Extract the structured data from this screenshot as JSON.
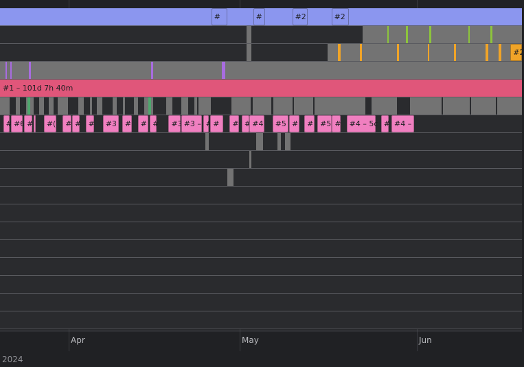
{
  "axis": {
    "year": "2024",
    "months": [
      {
        "name": "Apr",
        "frac": 0.1316
      },
      {
        "name": "May",
        "frac": 0.4592
      },
      {
        "name": "Jun",
        "frac": 0.7987
      }
    ]
  },
  "colors": {
    "blue": "#8b96ef",
    "pink": "#f07fc0",
    "red": "#e0567a",
    "orange": "#f0a428",
    "gray": "#737373",
    "dark": "#2a2b2e",
    "green": "#4fa66d",
    "lime": "#8dc43c",
    "purple": "#a86ce0",
    "line": "#5a5b60"
  },
  "lanes": [
    {
      "id": "lane-1",
      "base": {
        "color": "blue"
      },
      "segments": [
        {
          "start": 0.405,
          "end": 0.436,
          "color": "blue",
          "outline": true,
          "label": "#"
        },
        {
          "start": 0.485,
          "end": 0.508,
          "color": "blue",
          "outline": true,
          "label": "#"
        },
        {
          "start": 0.56,
          "end": 0.59,
          "color": "blue",
          "outline": true,
          "label": "#2"
        },
        {
          "start": 0.635,
          "end": 0.668,
          "color": "blue",
          "outline": true,
          "label": "#2"
        }
      ]
    },
    {
      "id": "lane-2",
      "base": {
        "color": "dark"
      },
      "segments": [
        {
          "start": 0.472,
          "end": 0.481,
          "color": "gray"
        },
        {
          "start": 0.695,
          "end": 1.0,
          "color": "gray"
        },
        {
          "start": 0.742,
          "end": 0.745,
          "color": "lime"
        },
        {
          "start": 0.778,
          "end": 0.781,
          "color": "lime"
        },
        {
          "start": 0.822,
          "end": 0.826,
          "color": "lime"
        },
        {
          "start": 0.897,
          "end": 0.9,
          "color": "lime"
        },
        {
          "start": 0.94,
          "end": 0.943,
          "color": "lime"
        }
      ]
    },
    {
      "id": "lane-3",
      "base": {
        "color": "dark"
      },
      "segments": [
        {
          "start": 0.472,
          "end": 0.481,
          "color": "gray"
        },
        {
          "start": 0.628,
          "end": 1.0,
          "color": "gray"
        },
        {
          "start": 0.648,
          "end": 0.652,
          "color": "orange"
        },
        {
          "start": 0.69,
          "end": 0.694,
          "color": "orange"
        },
        {
          "start": 0.76,
          "end": 0.764,
          "color": "orange"
        },
        {
          "start": 0.82,
          "end": 0.823,
          "color": "orange"
        },
        {
          "start": 0.87,
          "end": 0.874,
          "color": "orange"
        },
        {
          "start": 0.93,
          "end": 0.936,
          "color": "orange"
        },
        {
          "start": 0.955,
          "end": 0.96,
          "color": "orange"
        },
        {
          "start": 0.978,
          "end": 1.0,
          "color": "orange",
          "outline": true,
          "label": "#2"
        }
      ]
    },
    {
      "id": "lane-4",
      "base": {
        "color": "gray"
      },
      "segments": [
        {
          "start": 0.01,
          "end": 0.013,
          "color": "purple"
        },
        {
          "start": 0.02,
          "end": 0.023,
          "color": "purple"
        },
        {
          "start": 0.055,
          "end": 0.059,
          "color": "purple"
        },
        {
          "start": 0.29,
          "end": 0.294,
          "color": "purple"
        },
        {
          "start": 0.425,
          "end": 0.431,
          "color": "purple"
        }
      ]
    },
    {
      "id": "lane-5",
      "base": {
        "color": "red"
      },
      "segments": [
        {
          "start": 0.0,
          "end": 1.0,
          "color": "red",
          "label": "#1 – 101d 7h 40m"
        }
      ]
    },
    {
      "id": "lane-6",
      "base": {
        "color": "gray"
      },
      "segments": [
        {
          "start": 0.018,
          "end": 0.03,
          "color": "dark"
        },
        {
          "start": 0.038,
          "end": 0.05,
          "color": "dark"
        },
        {
          "start": 0.052,
          "end": 0.058,
          "color": "green"
        },
        {
          "start": 0.064,
          "end": 0.075,
          "color": "dark"
        },
        {
          "start": 0.084,
          "end": 0.094,
          "color": "dark"
        },
        {
          "start": 0.102,
          "end": 0.11,
          "color": "dark"
        },
        {
          "start": 0.13,
          "end": 0.15,
          "color": "dark"
        },
        {
          "start": 0.16,
          "end": 0.172,
          "color": "dark"
        },
        {
          "start": 0.176,
          "end": 0.186,
          "color": "dark"
        },
        {
          "start": 0.196,
          "end": 0.216,
          "color": "dark"
        },
        {
          "start": 0.224,
          "end": 0.236,
          "color": "dark"
        },
        {
          "start": 0.24,
          "end": 0.256,
          "color": "dark"
        },
        {
          "start": 0.264,
          "end": 0.276,
          "color": "dark"
        },
        {
          "start": 0.284,
          "end": 0.29,
          "color": "green"
        },
        {
          "start": 0.294,
          "end": 0.318,
          "color": "dark"
        },
        {
          "start": 0.33,
          "end": 0.348,
          "color": "dark"
        },
        {
          "start": 0.36,
          "end": 0.372,
          "color": "dark"
        },
        {
          "start": 0.378,
          "end": 0.38,
          "color": "dark"
        },
        {
          "start": 0.404,
          "end": 0.444,
          "color": "dark"
        },
        {
          "start": 0.48,
          "end": 0.484,
          "color": "dark"
        },
        {
          "start": 0.52,
          "end": 0.524,
          "color": "dark"
        },
        {
          "start": 0.56,
          "end": 0.563,
          "color": "dark"
        },
        {
          "start": 0.6,
          "end": 0.603,
          "color": "dark"
        },
        {
          "start": 0.7,
          "end": 0.712,
          "color": "dark"
        },
        {
          "start": 0.76,
          "end": 0.786,
          "color": "dark"
        },
        {
          "start": 0.846,
          "end": 0.849,
          "color": "dark"
        },
        {
          "start": 0.9,
          "end": 0.903,
          "color": "dark"
        },
        {
          "start": 0.95,
          "end": 0.953,
          "color": "dark"
        }
      ]
    },
    {
      "id": "lane-7",
      "base": {
        "color": "dark"
      },
      "segments": [
        {
          "start": 0.006,
          "end": 0.019,
          "color": "pink",
          "outline": true,
          "label": "#"
        },
        {
          "start": 0.021,
          "end": 0.044,
          "color": "pink",
          "outline": true,
          "label": "#6"
        },
        {
          "start": 0.046,
          "end": 0.062,
          "color": "pink",
          "outline": true,
          "label": "#"
        },
        {
          "start": 0.064,
          "end": 0.069,
          "color": "pink",
          "outline": true
        },
        {
          "start": 0.084,
          "end": 0.108,
          "color": "pink",
          "outline": true,
          "label": "#("
        },
        {
          "start": 0.12,
          "end": 0.137,
          "color": "pink",
          "outline": true,
          "label": "#"
        },
        {
          "start": 0.138,
          "end": 0.153,
          "color": "pink",
          "outline": true,
          "label": "#"
        },
        {
          "start": 0.164,
          "end": 0.18,
          "color": "pink",
          "outline": true,
          "label": "#"
        },
        {
          "start": 0.197,
          "end": 0.227,
          "color": "pink",
          "outline": true,
          "label": "#3"
        },
        {
          "start": 0.234,
          "end": 0.252,
          "color": "pink",
          "outline": true,
          "label": "#"
        },
        {
          "start": 0.264,
          "end": 0.284,
          "color": "pink",
          "outline": true,
          "label": "#"
        },
        {
          "start": 0.287,
          "end": 0.3,
          "color": "pink",
          "outline": true,
          "label": "#"
        },
        {
          "start": 0.323,
          "end": 0.346,
          "color": "pink",
          "outline": true,
          "label": "#3"
        },
        {
          "start": 0.347,
          "end": 0.387,
          "color": "pink",
          "outline": true,
          "label": "#3 –"
        },
        {
          "start": 0.389,
          "end": 0.4,
          "color": "pink",
          "outline": true,
          "label": "#"
        },
        {
          "start": 0.403,
          "end": 0.427,
          "color": "pink",
          "outline": true,
          "label": "#"
        },
        {
          "start": 0.44,
          "end": 0.458,
          "color": "pink",
          "outline": true,
          "label": "#"
        },
        {
          "start": 0.463,
          "end": 0.477,
          "color": "pink",
          "outline": true,
          "label": "#"
        },
        {
          "start": 0.478,
          "end": 0.506,
          "color": "pink",
          "outline": true,
          "label": "#4"
        },
        {
          "start": 0.522,
          "end": 0.552,
          "color": "pink",
          "outline": true,
          "label": "#5"
        },
        {
          "start": 0.554,
          "end": 0.574,
          "color": "pink",
          "outline": true,
          "label": "#"
        },
        {
          "start": 0.583,
          "end": 0.603,
          "color": "pink",
          "outline": true,
          "label": "#"
        },
        {
          "start": 0.608,
          "end": 0.635,
          "color": "pink",
          "outline": true,
          "label": "#5"
        },
        {
          "start": 0.636,
          "end": 0.652,
          "color": "pink",
          "outline": true,
          "label": "#"
        },
        {
          "start": 0.664,
          "end": 0.72,
          "color": "pink",
          "outline": true,
          "label": "#4 – 5c"
        },
        {
          "start": 0.73,
          "end": 0.745,
          "color": "pink",
          "outline": true,
          "label": "#"
        },
        {
          "start": 0.75,
          "end": 0.793,
          "color": "pink",
          "outline": true,
          "label": "#4 –"
        }
      ]
    },
    {
      "id": "lane-8",
      "base": {
        "color": "dark"
      },
      "segments": [
        {
          "start": 0.394,
          "end": 0.4,
          "color": "gray"
        },
        {
          "start": 0.491,
          "end": 0.504,
          "color": "gray"
        },
        {
          "start": 0.532,
          "end": 0.538,
          "color": "gray"
        },
        {
          "start": 0.546,
          "end": 0.557,
          "color": "gray"
        }
      ]
    },
    {
      "id": "lane-9",
      "base": {
        "color": "dark"
      },
      "segments": [
        {
          "start": 0.478,
          "end": 0.481,
          "color": "gray"
        }
      ]
    },
    {
      "id": "lane-10",
      "base": {
        "color": "dark"
      },
      "segments": [
        {
          "start": 0.436,
          "end": 0.447,
          "color": "gray"
        }
      ]
    },
    {
      "id": "lane-11",
      "base": {
        "color": "dark"
      },
      "segments": []
    },
    {
      "id": "lane-12",
      "base": {
        "color": "dark"
      },
      "segments": []
    },
    {
      "id": "lane-13",
      "base": {
        "color": "dark"
      },
      "segments": []
    },
    {
      "id": "lane-14",
      "base": {
        "color": "dark"
      },
      "segments": []
    },
    {
      "id": "lane-15",
      "base": {
        "color": "dark"
      },
      "segments": []
    },
    {
      "id": "lane-16",
      "base": {
        "color": "dark"
      },
      "segments": []
    },
    {
      "id": "lane-17",
      "base": {
        "color": "dark"
      },
      "segments": []
    },
    {
      "id": "lane-18",
      "base": {
        "color": "dark"
      },
      "segments": []
    }
  ]
}
